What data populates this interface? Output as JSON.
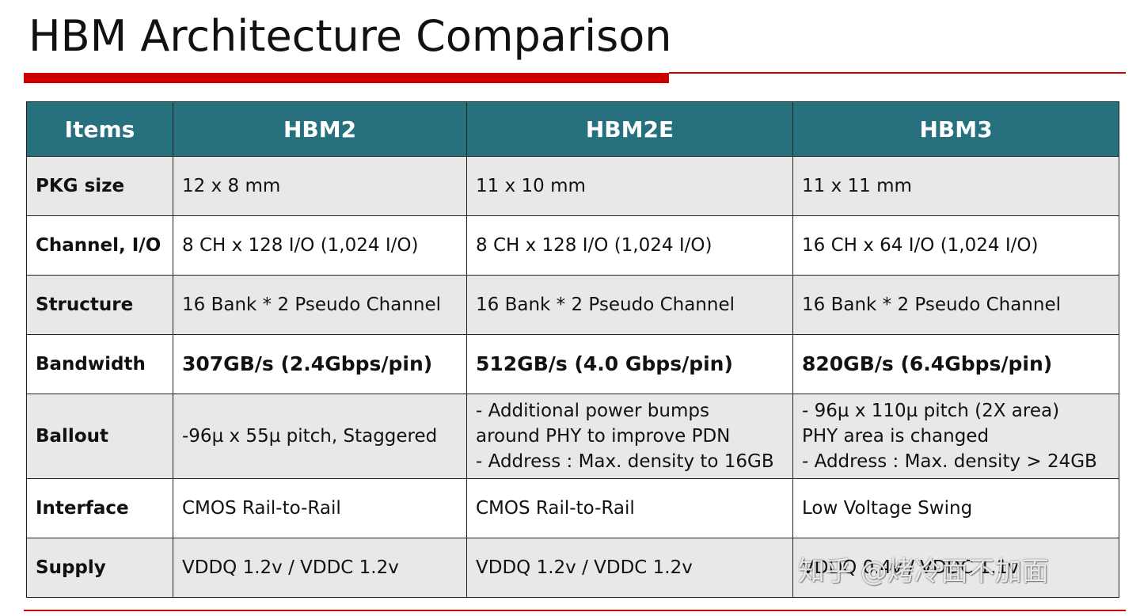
{
  "title": "HBM Architecture Comparison",
  "table": {
    "headers": [
      "Items",
      "HBM2",
      "HBM2E",
      "HBM3"
    ],
    "rows": [
      {
        "item": "PKG size",
        "hbm2": [
          "12 x 8 mm"
        ],
        "hbm2e": [
          "11 x 10 mm"
        ],
        "hbm3": [
          "11 x 11 mm"
        ],
        "bold": false
      },
      {
        "item": "Channel, I/O",
        "hbm2": [
          "8 CH x 128 I/O  (1,024 I/O)"
        ],
        "hbm2e": [
          "8 CH x 128 I/O  (1,024 I/O)"
        ],
        "hbm3": [
          "16 CH x 64 I/O  (1,024 I/O)"
        ],
        "bold": false
      },
      {
        "item": "Structure",
        "hbm2": [
          "16 Bank * 2 Pseudo Channel"
        ],
        "hbm2e": [
          "16 Bank * 2 Pseudo Channel"
        ],
        "hbm3": [
          "16 Bank * 2 Pseudo Channel"
        ],
        "bold": false
      },
      {
        "item": "Bandwidth",
        "hbm2": [
          "307GB/s (2.4Gbps/pin)"
        ],
        "hbm2e": [
          "512GB/s (4.0 Gbps/pin)"
        ],
        "hbm3": [
          "820GB/s (6.4Gbps/pin)"
        ],
        "bold": true
      },
      {
        "item": "Ballout",
        "hbm2": [
          "-96µ x 55µ pitch, Staggered"
        ],
        "hbm2e": [
          "- Additional power bumps",
          "around PHY to improve PDN",
          "- Address : Max. density to 16GB"
        ],
        "hbm3": [
          "- 96µ x 110µ pitch (2X area)",
          "PHY area is changed",
          "- Address : Max. density > 24GB"
        ],
        "bold": false
      },
      {
        "item": "Interface",
        "hbm2": [
          "CMOS Rail-to-Rail"
        ],
        "hbm2e": [
          "CMOS Rail-to-Rail"
        ],
        "hbm3": [
          "Low Voltage Swing"
        ],
        "bold": false
      },
      {
        "item": "Supply",
        "hbm2": [
          "VDDQ 1.2v /  VDDC 1.2v"
        ],
        "hbm2e": [
          "VDDQ 1.2v /  VDDC 1.2v"
        ],
        "hbm3": [
          "VDDQ 0.4v / VDDC 1.1v"
        ],
        "bold": false
      }
    ]
  },
  "watermark": "知乎 @烤冷面不加面",
  "colors": {
    "accent": "#cc0000",
    "header_bg": "#27717f",
    "row_alt": "#e8e8e8"
  }
}
